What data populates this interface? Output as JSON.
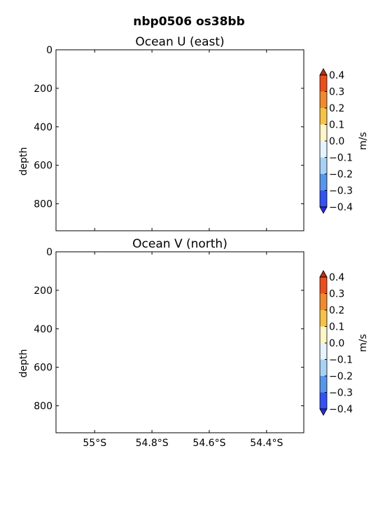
{
  "figure": {
    "title": "nbp0506 os38bb"
  },
  "chart_data": [
    {
      "type": "heatmap",
      "title": "Ocean U (east)",
      "xlabel": "",
      "ylabel": "depth",
      "ylim": [
        940,
        0
      ],
      "yticks": [
        {
          "value": 0,
          "label": "0"
        },
        {
          "value": 200,
          "label": "200"
        },
        {
          "value": 400,
          "label": "400"
        },
        {
          "value": 600,
          "label": "600"
        },
        {
          "value": 800,
          "label": "800"
        }
      ],
      "xlim": [
        -55.135,
        -54.27
      ],
      "xticks": [
        {
          "value": -55.0,
          "label": ""
        },
        {
          "value": -54.8,
          "label": ""
        },
        {
          "value": -54.6,
          "label": ""
        },
        {
          "value": -54.4,
          "label": ""
        }
      ],
      "data": [],
      "colorbar": {
        "label": "m/s",
        "levels": [
          0.4,
          0.3,
          0.2,
          0.1,
          0.0,
          -0.1,
          -0.2,
          -0.3,
          -0.4
        ],
        "tick_labels": [
          "0.4",
          "0.3",
          "0.2",
          "0.1",
          "0.0",
          "−0.1",
          "−0.2",
          "−0.3",
          "−0.4"
        ],
        "bands_top_to_bottom": [
          "#e8501e",
          "#f08a30",
          "#f5c24a",
          "#fff6c8",
          "#e6f4ff",
          "#a8d2f5",
          "#5896ea",
          "#3452f0"
        ],
        "extend_top_color": "#c82a14",
        "extend_bottom_color": "#2a2ad8"
      }
    },
    {
      "type": "heatmap",
      "title": "Ocean V (north)",
      "xlabel": "",
      "ylabel": "depth",
      "ylim": [
        940,
        0
      ],
      "yticks": [
        {
          "value": 0,
          "label": "0"
        },
        {
          "value": 200,
          "label": "200"
        },
        {
          "value": 400,
          "label": "400"
        },
        {
          "value": 600,
          "label": "600"
        },
        {
          "value": 800,
          "label": "800"
        }
      ],
      "xlim": [
        -55.135,
        -54.27
      ],
      "xticks": [
        {
          "value": -55.0,
          "label": "55°S"
        },
        {
          "value": -54.8,
          "label": "54.8°S"
        },
        {
          "value": -54.6,
          "label": "54.6°S"
        },
        {
          "value": -54.4,
          "label": "54.4°S"
        }
      ],
      "data": [],
      "colorbar": {
        "label": "m/s",
        "levels": [
          0.4,
          0.3,
          0.2,
          0.1,
          0.0,
          -0.1,
          -0.2,
          -0.3,
          -0.4
        ],
        "tick_labels": [
          "0.4",
          "0.3",
          "0.2",
          "0.1",
          "0.0",
          "−0.1",
          "−0.2",
          "−0.3",
          "−0.4"
        ],
        "bands_top_to_bottom": [
          "#e8501e",
          "#f08a30",
          "#f5c24a",
          "#fff6c8",
          "#e6f4ff",
          "#a8d2f5",
          "#5896ea",
          "#3452f0"
        ],
        "extend_top_color": "#c82a14",
        "extend_bottom_color": "#2a2ad8"
      }
    }
  ]
}
